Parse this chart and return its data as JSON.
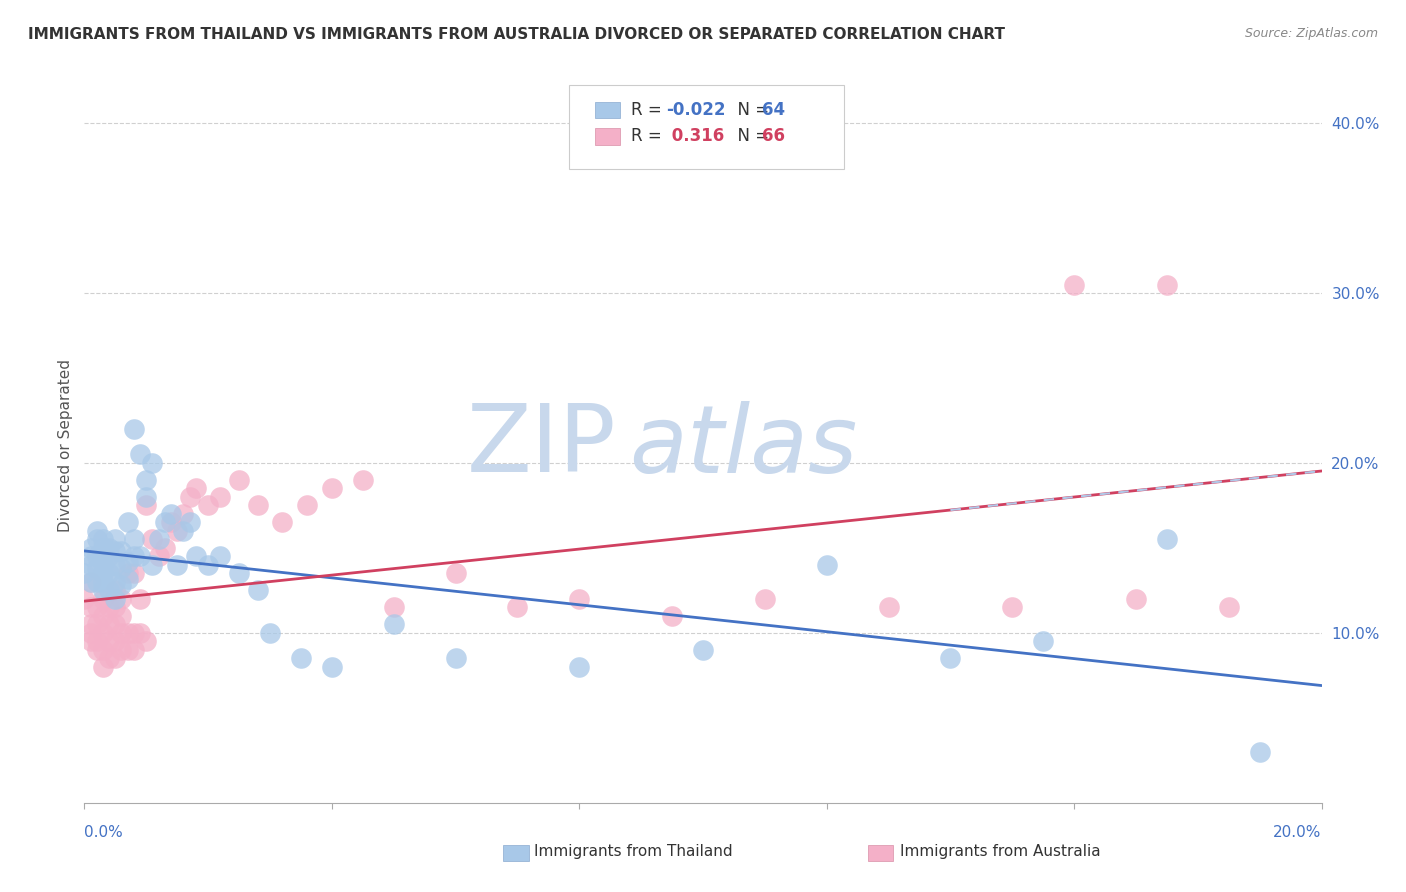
{
  "title": "IMMIGRANTS FROM THAILAND VS IMMIGRANTS FROM AUSTRALIA DIVORCED OR SEPARATED CORRELATION CHART",
  "source": "Source: ZipAtlas.com",
  "ylabel": "Divorced or Separated",
  "R_thailand": -0.022,
  "N_thailand": 64,
  "R_australia": 0.316,
  "N_australia": 66,
  "color_thailand": "#a8c8e8",
  "color_australia": "#f4b0c8",
  "line_color_thailand": "#4472c4",
  "line_color_australia": "#d04060",
  "line_color_thailand_dash": "#b0c8e8",
  "watermark_color": "#c8d8ec",
  "xlim": [
    0.0,
    0.2
  ],
  "ylim": [
    0.0,
    0.42
  ],
  "ytick_vals": [
    0.1,
    0.2,
    0.3,
    0.4
  ],
  "th_x": [
    0.0,
    0.001,
    0.001,
    0.001,
    0.001,
    0.002,
    0.002,
    0.002,
    0.002,
    0.002,
    0.003,
    0.003,
    0.003,
    0.003,
    0.003,
    0.003,
    0.003,
    0.004,
    0.004,
    0.004,
    0.004,
    0.005,
    0.005,
    0.005,
    0.005,
    0.005,
    0.006,
    0.006,
    0.006,
    0.007,
    0.007,
    0.007,
    0.008,
    0.008,
    0.008,
    0.009,
    0.009,
    0.01,
    0.01,
    0.011,
    0.011,
    0.012,
    0.013,
    0.014,
    0.015,
    0.016,
    0.017,
    0.018,
    0.02,
    0.022,
    0.025,
    0.028,
    0.03,
    0.035,
    0.04,
    0.05,
    0.06,
    0.08,
    0.1,
    0.12,
    0.14,
    0.155,
    0.175,
    0.19
  ],
  "th_y": [
    0.135,
    0.13,
    0.14,
    0.145,
    0.15,
    0.13,
    0.138,
    0.145,
    0.155,
    0.16,
    0.125,
    0.13,
    0.135,
    0.14,
    0.145,
    0.15,
    0.155,
    0.125,
    0.135,
    0.145,
    0.15,
    0.12,
    0.13,
    0.14,
    0.148,
    0.155,
    0.128,
    0.138,
    0.148,
    0.132,
    0.142,
    0.165,
    0.145,
    0.155,
    0.22,
    0.145,
    0.205,
    0.18,
    0.19,
    0.14,
    0.2,
    0.155,
    0.165,
    0.17,
    0.14,
    0.16,
    0.165,
    0.145,
    0.14,
    0.145,
    0.135,
    0.125,
    0.1,
    0.085,
    0.08,
    0.105,
    0.085,
    0.08,
    0.09,
    0.14,
    0.085,
    0.095,
    0.155,
    0.03
  ],
  "au_x": [
    0.0,
    0.001,
    0.001,
    0.001,
    0.001,
    0.001,
    0.002,
    0.002,
    0.002,
    0.002,
    0.003,
    0.003,
    0.003,
    0.003,
    0.003,
    0.004,
    0.004,
    0.004,
    0.004,
    0.005,
    0.005,
    0.005,
    0.005,
    0.005,
    0.006,
    0.006,
    0.006,
    0.006,
    0.007,
    0.007,
    0.007,
    0.008,
    0.008,
    0.008,
    0.009,
    0.009,
    0.01,
    0.01,
    0.011,
    0.012,
    0.013,
    0.014,
    0.015,
    0.016,
    0.017,
    0.018,
    0.02,
    0.022,
    0.025,
    0.028,
    0.032,
    0.036,
    0.04,
    0.045,
    0.05,
    0.06,
    0.07,
    0.08,
    0.095,
    0.11,
    0.13,
    0.15,
    0.16,
    0.17,
    0.175,
    0.185
  ],
  "au_y": [
    0.12,
    0.095,
    0.1,
    0.105,
    0.115,
    0.13,
    0.09,
    0.095,
    0.105,
    0.115,
    0.08,
    0.09,
    0.1,
    0.11,
    0.12,
    0.085,
    0.095,
    0.105,
    0.115,
    0.085,
    0.095,
    0.105,
    0.115,
    0.125,
    0.09,
    0.1,
    0.11,
    0.12,
    0.09,
    0.1,
    0.135,
    0.09,
    0.1,
    0.135,
    0.1,
    0.12,
    0.095,
    0.175,
    0.155,
    0.145,
    0.15,
    0.165,
    0.16,
    0.17,
    0.18,
    0.185,
    0.175,
    0.18,
    0.19,
    0.175,
    0.165,
    0.175,
    0.185,
    0.19,
    0.115,
    0.135,
    0.115,
    0.12,
    0.11,
    0.12,
    0.115,
    0.115,
    0.305,
    0.12,
    0.305,
    0.115
  ]
}
